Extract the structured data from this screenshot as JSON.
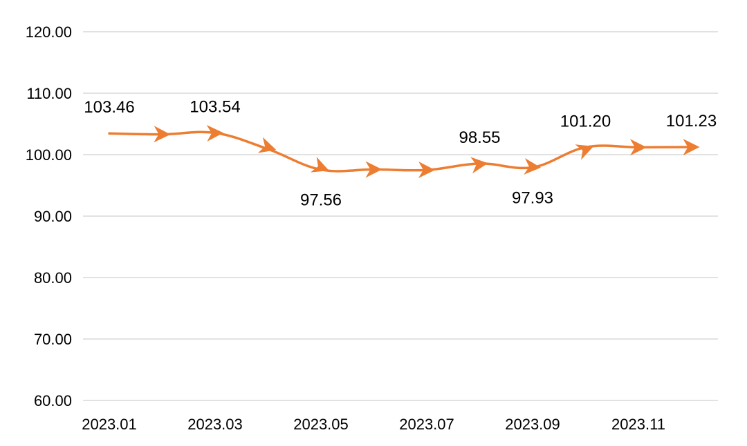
{
  "chart_data": {
    "type": "line",
    "x": [
      "2023.01",
      "2023.02",
      "2023.03",
      "2023.04",
      "2023.05",
      "2023.06",
      "2023.07",
      "2023.08",
      "2023.09",
      "2023.10",
      "2023.11",
      "2023.12"
    ],
    "x_tick_labels": [
      "2023.01",
      "2023.03",
      "2023.05",
      "2023.07",
      "2023.09",
      "2023.11"
    ],
    "series": [
      {
        "values": [
          103.46,
          103.3,
          103.54,
          100.9,
          97.56,
          97.6,
          97.5,
          98.55,
          97.93,
          101.2,
          101.2,
          101.23
        ],
        "color": "#ED7D31",
        "marker": "arrow"
      }
    ],
    "data_labels": [
      {
        "index": 0,
        "text": "103.46",
        "position": "above"
      },
      {
        "index": 2,
        "text": "103.54",
        "position": "above"
      },
      {
        "index": 4,
        "text": "97.56",
        "position": "below"
      },
      {
        "index": 7,
        "text": "98.55",
        "position": "above"
      },
      {
        "index": 8,
        "text": "97.93",
        "position": "below"
      },
      {
        "index": 9,
        "text": "101.20",
        "position": "above"
      },
      {
        "index": 11,
        "text": "101.23",
        "position": "above"
      }
    ],
    "y_ticks": [
      "60.00",
      "70.00",
      "80.00",
      "90.00",
      "100.00",
      "110.00",
      "120.00"
    ],
    "ylim": [
      60,
      120
    ],
    "grid": true,
    "legend": "none"
  }
}
